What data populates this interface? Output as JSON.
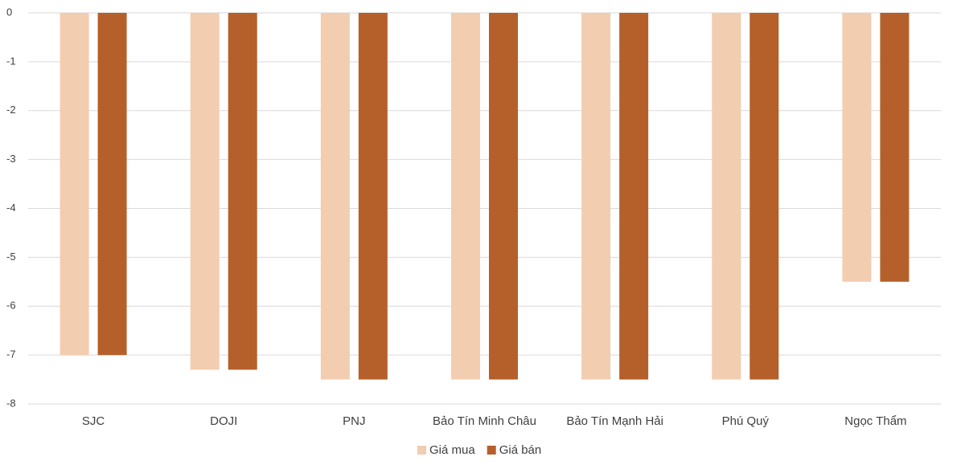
{
  "chart_data": {
    "type": "bar",
    "categories": [
      "SJC",
      "DOJI",
      "PNJ",
      "Bảo Tín Minh Châu",
      "Bảo Tín Mạnh Hải",
      "Phú Quý",
      "Ngọc Thẩm"
    ],
    "series": [
      {
        "name": "Giá mua",
        "color": "#f2cdb0",
        "values": [
          -7,
          -7.3,
          -7.5,
          -7.5,
          -7.5,
          -7.5,
          -5.5
        ]
      },
      {
        "name": "Giá bán",
        "color": "#b5602a",
        "values": [
          -7,
          -7.3,
          -7.5,
          -7.5,
          -7.5,
          -7.5,
          -5.5
        ]
      }
    ],
    "ylim": [
      -8,
      0
    ],
    "yticks": [
      0,
      -1,
      -2,
      -3,
      -4,
      -5,
      -6,
      -7,
      -8
    ],
    "grid": true,
    "legend": "bottom"
  }
}
